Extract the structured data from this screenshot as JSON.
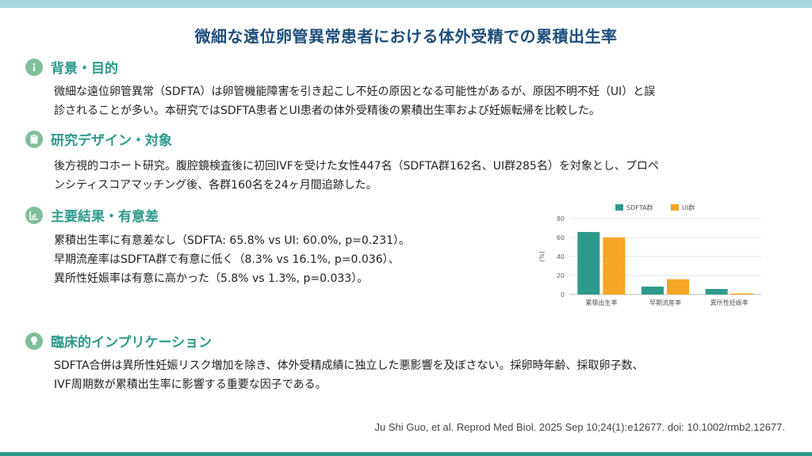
{
  "title": "微細な遠位卵管異常患者における体外受精での累積出生率",
  "sections": [
    {
      "title": "背景・目的",
      "icon": "info-icon",
      "lines": [
        "微細な遠位卵管異常（SDFTA）は卵管機能障害を引き起こし不妊の原因となる可能性があるが、原因不明不妊（UI）と誤",
        "診されることが多い。本研究ではSDFTA患者とUI患者の体外受精後の累積出生率および妊娠転帰を比較した。"
      ]
    },
    {
      "title": "研究デザイン・対象",
      "icon": "clipboard-icon",
      "lines": [
        "後方視的コホート研究。腹腔鏡検査後に初回IVFを受けた女性447名（SDFTA群162名、UI群285名）を対象とし、プロペ",
        "ンシティスコアマッチング後、各群160名を24ヶ月間追跡した。"
      ]
    },
    {
      "title": "主要結果・有意差",
      "icon": "chart-icon",
      "lines": [
        "累積出生率に有意差なし（SDFTA: 65.8% vs UI: 60.0%, p=0.231）。",
        "早期流産率はSDFTA群で有意に低く（8.3% vs 16.1%, p=0.036）、",
        "異所性妊娠率は有意に高かった（5.8% vs 1.3%, p=0.033）。"
      ]
    },
    {
      "title": "臨床的インプリケーション",
      "icon": "lightbulb-icon",
      "lines": [
        "SDFTA合併は異所性妊娠リスク増加を除き、体外受精成績に独立した悪影響を及ぼさない。採卵時年齢、採取卵子数、",
        "IVF周期数が累積出生率に影響する重要な因子である。"
      ]
    }
  ],
  "citation": "Ju Shi Guo, et al. Reprod Med Biol. 2025 Sep 10;24(1):e12677.  doi: 10.1002/rmb2.12677.",
  "colors": {
    "accent": "#2e9a8b",
    "title": "#1f4e79",
    "icon_bg": "#7fbf9b",
    "series1": "#2e9a8b",
    "series2": "#f5a623"
  },
  "chart_data": {
    "type": "bar",
    "categories": [
      "累積出生率",
      "早期流産率",
      "異所性妊娠率"
    ],
    "series": [
      {
        "name": "SDFTA群",
        "values": [
          65.8,
          8.3,
          5.8
        ]
      },
      {
        "name": "UI群",
        "values": [
          60.0,
          16.1,
          1.3
        ]
      }
    ],
    "ylabel": "(%)",
    "ylim": [
      0,
      80
    ],
    "yticks": [
      0,
      20,
      40,
      60,
      80
    ],
    "legend": "top-center",
    "grid": true
  }
}
